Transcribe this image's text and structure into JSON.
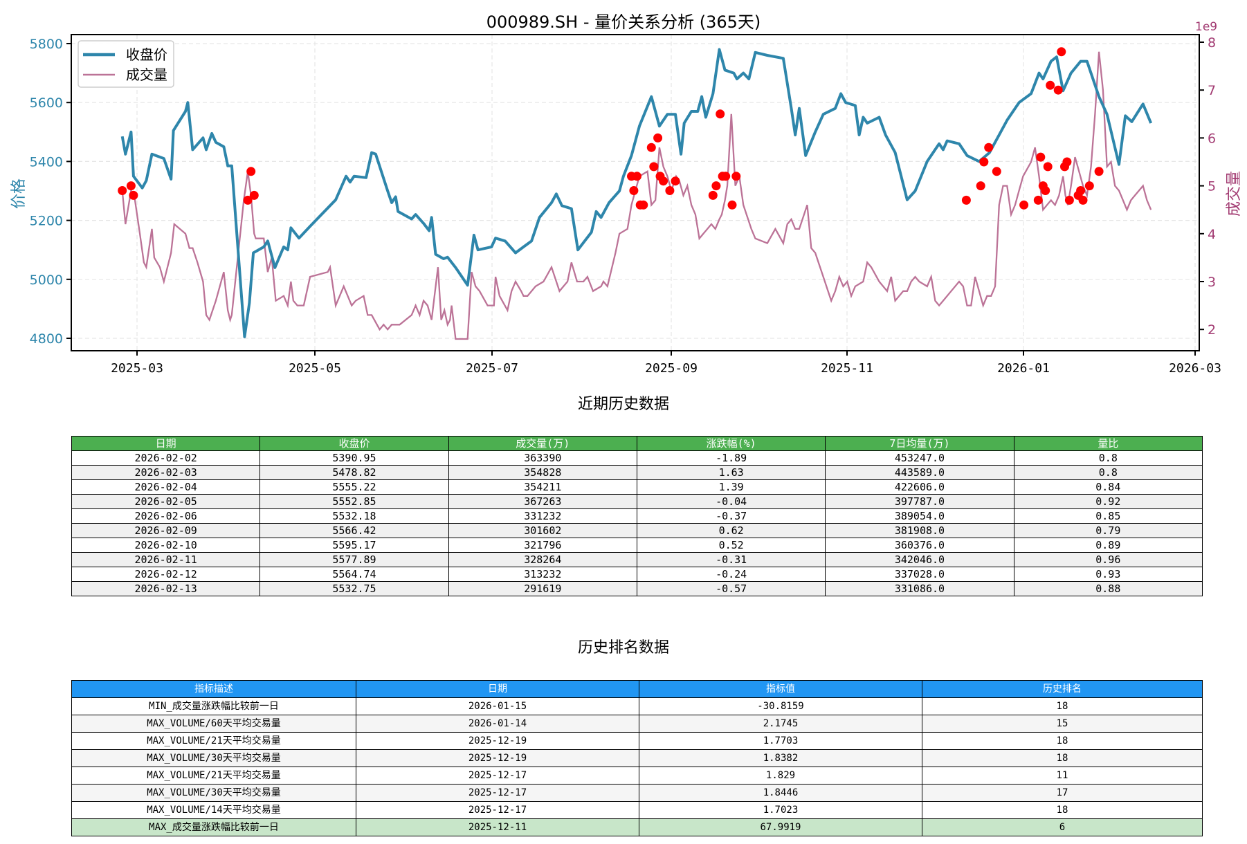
{
  "title": "000989.SH - 量价关系分析 (365天)",
  "chart_data": {
    "type": "line",
    "title": "000989.SH - 量价关系分析 (365天)",
    "xlabel": "",
    "ylabel": "价格",
    "y2label": "成交量",
    "y2_offset_label": "1e9",
    "x_ticks": [
      "2025-03",
      "2025-05",
      "2025-07",
      "2025-09",
      "2025-11",
      "2026-01",
      "2026-03"
    ],
    "y_ticks": [
      4800,
      5000,
      5200,
      5400,
      5600,
      5800
    ],
    "y2_ticks": [
      2,
      3,
      4,
      5,
      6,
      7,
      8
    ],
    "ylim": [
      4770,
      5840
    ],
    "y2lim": [
      1.55,
      8.15
    ],
    "grid": true,
    "legend": {
      "position": "upper left",
      "entries": [
        "收盘价",
        "成交量"
      ]
    },
    "colors": {
      "price": "#2e86ab",
      "volume": "#bc7397",
      "marker": "#ff0000",
      "price_axis": "#2e86ab",
      "volume_axis": "#a23b72"
    },
    "series": [
      {
        "name": "收盘价",
        "axis": "left",
        "x_disp": [
          153,
          157,
          164,
          167,
          178,
          183,
          190,
          205,
          214,
          217,
          232,
          235,
          241,
          254,
          258,
          265,
          270,
          280,
          285,
          290,
          306,
          312,
          317,
          330,
          335,
          344,
          355,
          360,
          364,
          374,
          388,
          420,
          433,
          438,
          443,
          458,
          465,
          470,
          485,
          490,
          495,
          498,
          515,
          520,
          530,
          537,
          540,
          545,
          555,
          560,
          570,
          585,
          593,
          598,
          615,
          620,
          632,
          645,
          655,
          665,
          675,
          690,
          696,
          703,
          715,
          723,
          740,
          746,
          752,
          762,
          775,
          780,
          790,
          800,
          815,
          825,
          835,
          845,
          852,
          856,
          865,
          873,
          878,
          883,
          892,
          900,
          907,
          918,
          922,
          930,
          937,
          945,
          960,
          980,
          990,
          995,
          1000,
          1008,
          1020,
          1030,
          1045,
          1052,
          1058,
          1070,
          1075,
          1080,
          1085,
          1100,
          1108,
          1120,
          1135,
          1145,
          1160,
          1175,
          1180,
          1185,
          1200,
          1210,
          1225,
          1238,
          1250,
          1260,
          1275,
          1290,
          1300,
          1305,
          1315,
          1322,
          1330,
          1340,
          1352,
          1360,
          1375,
          1385,
          1400,
          1408,
          1416,
          1430,
          1440
        ],
        "values": [
          5485,
          5425,
          5500,
          5350,
          5310,
          5335,
          5425,
          5410,
          5340,
          5505,
          5570,
          5600,
          5440,
          5480,
          5440,
          5495,
          5465,
          5450,
          5385,
          5385,
          4805,
          4920,
          5090,
          5110,
          5130,
          5040,
          5110,
          5100,
          5175,
          5140,
          5180,
          5270,
          5350,
          5330,
          5350,
          5345,
          5430,
          5425,
          5300,
          5260,
          5280,
          5230,
          5205,
          5220,
          5190,
          5165,
          5210,
          5085,
          5070,
          5075,
          5040,
          4980,
          5150,
          5100,
          5110,
          5140,
          5130,
          5090,
          5110,
          5130,
          5210,
          5260,
          5290,
          5250,
          5240,
          5100,
          5160,
          5230,
          5210,
          5260,
          5300,
          5350,
          5420,
          5520,
          5620,
          5520,
          5560,
          5560,
          5425,
          5530,
          5570,
          5570,
          5620,
          5550,
          5630,
          5780,
          5710,
          5700,
          5680,
          5700,
          5680,
          5770,
          5760,
          5750,
          5580,
          5490,
          5580,
          5420,
          5500,
          5560,
          5580,
          5630,
          5600,
          5590,
          5490,
          5550,
          5530,
          5550,
          5490,
          5430,
          5270,
          5300,
          5400,
          5460,
          5440,
          5470,
          5460,
          5420,
          5400,
          5430,
          5490,
          5540,
          5600,
          5630,
          5700,
          5680,
          5740,
          5755,
          5640,
          5700,
          5740,
          5740,
          5620,
          5560,
          5390,
          5555,
          5535,
          5595,
          5530
        ]
      },
      {
        "name": "成交量",
        "axis": "right",
        "x_disp": [
          153,
          157,
          164,
          168,
          175,
          180,
          183,
          190,
          193,
          200,
          205,
          214,
          218,
          232,
          237,
          241,
          247,
          254,
          258,
          262,
          270,
          280,
          285,
          288,
          290,
          305,
          310,
          314,
          318,
          320,
          330,
          335,
          340,
          345,
          355,
          360,
          364,
          367,
          372,
          380,
          388,
          410,
          413,
          420,
          430,
          440,
          445,
          455,
          460,
          465,
          475,
          480,
          485,
          490,
          495,
          500,
          515,
          520,
          525,
          530,
          535,
          540,
          548,
          552,
          556,
          560,
          563,
          565,
          570,
          575,
          585,
          590,
          595,
          600,
          610,
          618,
          620,
          625,
          635,
          640,
          645,
          652,
          655,
          660,
          670,
          680,
          690,
          696,
          700,
          710,
          715,
          722,
          730,
          735,
          742,
          752,
          755,
          760,
          770,
          775,
          785,
          790,
          795,
          800,
          810,
          815,
          820,
          825,
          830,
          835,
          840,
          846,
          850,
          855,
          860,
          865,
          870,
          875,
          880,
          890,
          895,
          900,
          903,
          907,
          910,
          915,
          920,
          925,
          930,
          940,
          945,
          960,
          970,
          980,
          985,
          990,
          995,
          1000,
          1010,
          1015,
          1020,
          1030,
          1040,
          1045,
          1050,
          1055,
          1060,
          1065,
          1070,
          1080,
          1085,
          1090,
          1100,
          1110,
          1115,
          1120,
          1125,
          1130,
          1135,
          1140,
          1145,
          1150,
          1160,
          1165,
          1170,
          1175,
          1180,
          1190,
          1200,
          1205,
          1210,
          1215,
          1220,
          1225,
          1230,
          1235,
          1240,
          1245,
          1250,
          1255,
          1260,
          1265,
          1270,
          1275,
          1280,
          1290,
          1295,
          1300,
          1305,
          1310,
          1315,
          1320,
          1325,
          1330,
          1333,
          1336,
          1340,
          1345,
          1350,
          1355,
          1360,
          1365,
          1370,
          1375,
          1380,
          1385,
          1390,
          1395,
          1400,
          1405,
          1410,
          1415,
          1420,
          1425,
          1430,
          1435,
          1440
        ],
        "values": [
          4.9,
          4.2,
          4.9,
          4.8,
          4.0,
          3.4,
          3.3,
          4.1,
          3.5,
          3.3,
          3.0,
          3.6,
          4.2,
          4.0,
          3.7,
          3.7,
          3.4,
          3.0,
          2.3,
          2.2,
          2.6,
          3.2,
          2.4,
          2.2,
          2.3,
          4.7,
          5.3,
          4.8,
          4.0,
          3.9,
          3.9,
          3.2,
          3.5,
          2.6,
          2.7,
          2.5,
          3.0,
          2.6,
          2.5,
          2.5,
          3.1,
          3.2,
          3.3,
          2.5,
          2.9,
          2.5,
          2.6,
          2.7,
          2.3,
          2.3,
          2.0,
          2.1,
          2.0,
          2.1,
          2.1,
          2.1,
          2.3,
          2.5,
          2.3,
          2.6,
          2.5,
          2.2,
          3.3,
          2.2,
          2.4,
          2.1,
          2.2,
          2.5,
          1.8,
          1.8,
          1.8,
          3.2,
          2.9,
          2.8,
          2.5,
          2.5,
          3.1,
          2.7,
          2.4,
          2.8,
          3.0,
          2.8,
          2.7,
          2.7,
          2.9,
          3.0,
          3.3,
          3.0,
          2.8,
          3.0,
          3.4,
          3.0,
          3.0,
          3.1,
          2.8,
          2.9,
          3.0,
          2.9,
          3.6,
          4.0,
          4.1,
          4.6,
          4.9,
          5.2,
          5.3,
          4.6,
          4.7,
          5.8,
          5.4,
          5.2,
          4.9,
          5.2,
          5.1,
          4.8,
          5.0,
          4.6,
          4.4,
          3.9,
          4.0,
          4.2,
          4.1,
          4.3,
          4.4,
          4.7,
          5.0,
          6.5,
          5.0,
          5.2,
          4.6,
          4.1,
          3.9,
          3.8,
          4.1,
          3.8,
          4.2,
          4.3,
          4.1,
          4.1,
          4.6,
          3.7,
          3.6,
          3.1,
          2.6,
          2.8,
          3.1,
          2.9,
          3.0,
          2.7,
          2.9,
          3.0,
          3.4,
          3.3,
          3.0,
          2.8,
          3.1,
          2.6,
          2.7,
          2.8,
          2.8,
          3.0,
          3.1,
          3.0,
          2.9,
          3.1,
          2.6,
          2.5,
          2.6,
          2.8,
          3.0,
          2.9,
          2.5,
          2.5,
          3.1,
          2.8,
          2.5,
          2.7,
          2.7,
          2.9,
          4.6,
          5.0,
          5.0,
          4.4,
          4.6,
          4.9,
          5.2,
          5.5,
          5.8,
          5.2,
          4.5,
          4.6,
          4.7,
          4.6,
          4.8,
          5.2,
          4.8,
          4.6,
          5.0,
          5.6,
          5.3,
          5.0,
          4.8,
          5.4,
          6.5,
          7.8,
          7.0,
          5.4,
          5.5,
          5.0,
          4.9,
          4.7,
          4.5,
          4.7,
          4.8,
          4.9,
          5.0,
          4.7,
          4.5,
          4.2,
          4.4,
          4.1,
          3.8,
          4.0,
          3.4,
          3.3,
          3.5,
          3.1,
          3.0,
          3.1,
          2.9
        ]
      },
      {
        "name": "volume_spikes",
        "axis": "right",
        "type": "scatter",
        "x_disp": [
          153,
          164,
          167,
          310,
          314,
          318,
          790,
          793,
          797,
          801,
          805,
          815,
          818,
          823,
          826,
          830,
          838,
          845,
          892,
          896,
          901,
          904,
          908,
          916,
          921,
          1209,
          1227,
          1231,
          1237,
          1247,
          1281,
          1299,
          1302,
          1305,
          1308,
          1311,
          1314,
          1324,
          1328,
          1332,
          1335,
          1338,
          1349,
          1352,
          1355,
          1363,
          1375
        ],
        "values": [
          4.9,
          5.0,
          4.8,
          4.7,
          5.3,
          4.8,
          5.2,
          4.9,
          5.2,
          4.6,
          4.6,
          5.8,
          5.4,
          6.0,
          5.2,
          5.1,
          4.9,
          5.1,
          4.8,
          5.0,
          6.5,
          5.2,
          5.2,
          4.6,
          5.2,
          4.7,
          5.0,
          5.5,
          5.8,
          5.3,
          4.6,
          4.7,
          5.6,
          5.0,
          4.9,
          5.4,
          7.1,
          7.0,
          7.8,
          5.4,
          5.5,
          4.7,
          4.8,
          4.9,
          4.7,
          5.0,
          5.3
        ]
      }
    ]
  },
  "table1": {
    "title": "近期历史数据",
    "headers": [
      "日期",
      "收盘价",
      "成交量(万)",
      "涨跌幅(%)",
      "7日均量(万)",
      "量比"
    ],
    "rows": [
      [
        "2026-02-02",
        "5390.95",
        "363390",
        "-1.89",
        "453247.0",
        "0.8"
      ],
      [
        "2026-02-03",
        "5478.82",
        "354828",
        "1.63",
        "443589.0",
        "0.8"
      ],
      [
        "2026-02-04",
        "5555.22",
        "354211",
        "1.39",
        "422606.0",
        "0.84"
      ],
      [
        "2026-02-05",
        "5552.85",
        "367263",
        "-0.04",
        "397787.0",
        "0.92"
      ],
      [
        "2026-02-06",
        "5532.18",
        "331232",
        "-0.37",
        "389054.0",
        "0.85"
      ],
      [
        "2026-02-09",
        "5566.42",
        "301602",
        "0.62",
        "381908.0",
        "0.79"
      ],
      [
        "2026-02-10",
        "5595.17",
        "321796",
        "0.52",
        "360376.0",
        "0.89"
      ],
      [
        "2026-02-11",
        "5577.89",
        "328264",
        "-0.31",
        "342046.0",
        "0.96"
      ],
      [
        "2026-02-12",
        "5564.74",
        "313232",
        "-0.24",
        "337028.0",
        "0.93"
      ],
      [
        "2026-02-13",
        "5532.75",
        "291619",
        "-0.57",
        "331086.0",
        "0.88"
      ]
    ]
  },
  "table2": {
    "title": "历史排名数据",
    "headers": [
      "指标描述",
      "日期",
      "指标值",
      "历史排名"
    ],
    "rows": [
      [
        "MIN_成交量涨跌幅比较前一日",
        "2026-01-15",
        "-30.8159",
        "18"
      ],
      [
        "MAX_VOLUME/60天平均交易量",
        "2026-01-14",
        "2.1745",
        "15"
      ],
      [
        "MAX_VOLUME/21天平均交易量",
        "2025-12-19",
        "1.7703",
        "18"
      ],
      [
        "MAX_VOLUME/30天平均交易量",
        "2025-12-19",
        "1.8382",
        "18"
      ],
      [
        "MAX_VOLUME/21天平均交易量",
        "2025-12-17",
        "1.829",
        "11"
      ],
      [
        "MAX_VOLUME/30天平均交易量",
        "2025-12-17",
        "1.8446",
        "17"
      ],
      [
        "MAX_VOLUME/14天平均交易量",
        "2025-12-17",
        "1.7023",
        "18"
      ],
      [
        "MAX_成交量涨跌幅比较前一日",
        "2025-12-11",
        "67.9919",
        "6"
      ]
    ],
    "highlight_row": 7
  }
}
